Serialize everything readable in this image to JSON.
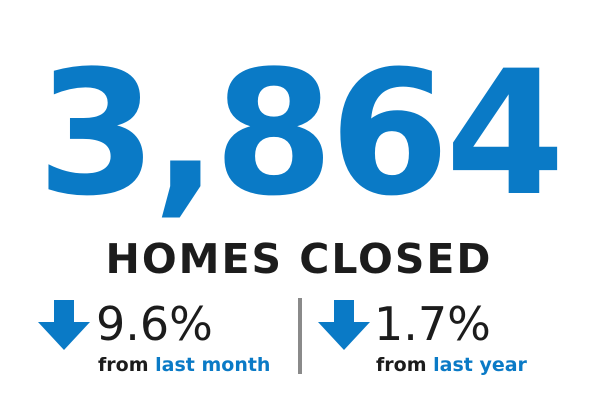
{
  "headline_number": "3,864",
  "headline_label": "HOMES CLOSED",
  "stats": [
    {
      "direction_icon": "arrow-down-icon",
      "change": "9.6%",
      "from_text": "from",
      "period_text": "last month"
    },
    {
      "direction_icon": "arrow-down-icon",
      "change": "1.7%",
      "from_text": "from",
      "period_text": "last year"
    }
  ],
  "colors": {
    "accent": "#0a7ac6",
    "text": "#1c1c1c",
    "divider": "#8a8a8a"
  }
}
